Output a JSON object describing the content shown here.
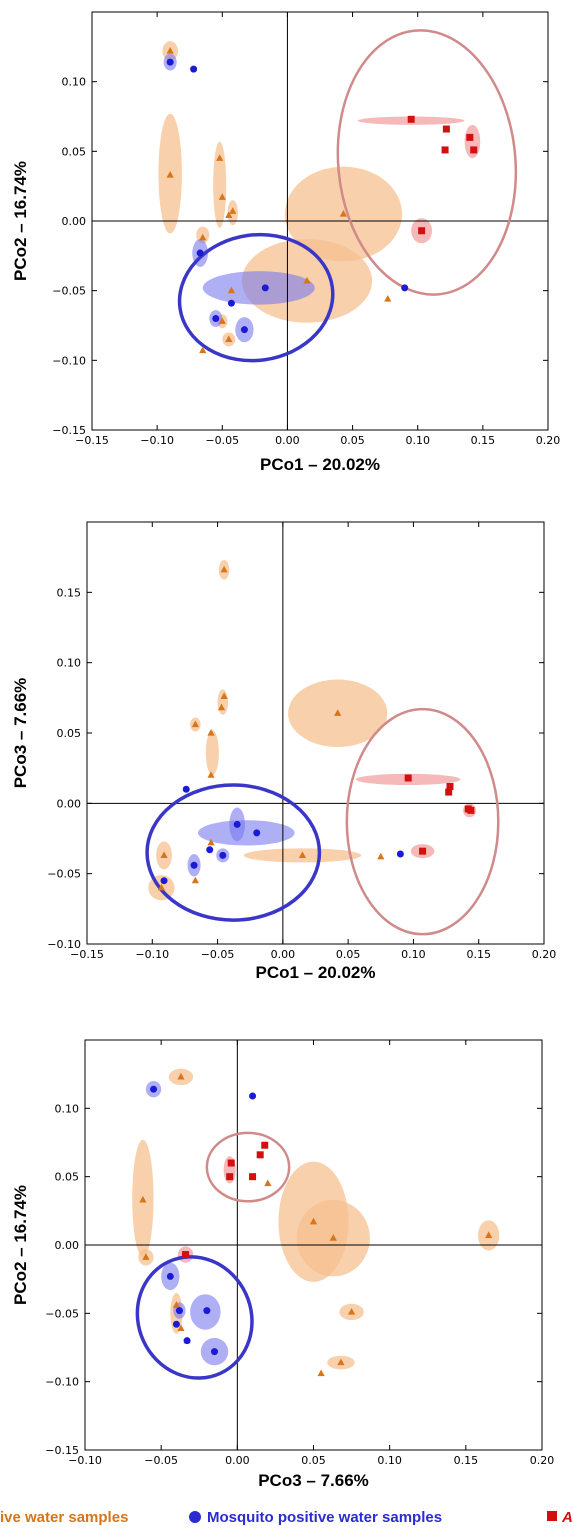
{
  "colors": {
    "orange": "#d7751a",
    "orange_fill": "#f6c08f",
    "blue": "#1b1bd6",
    "blue_fill": "#7a7af0",
    "red": "#d40f0f",
    "red_fill": "#f08a8a",
    "pink_ring": "#d08a8a",
    "blue_ring": "#3a36c8"
  },
  "legend": [
    {
      "text": "ive water samples",
      "color": "#d7751a",
      "marker": "none"
    },
    {
      "text": "Mosquito positive water samples",
      "color": "#2b2bd2",
      "marker": "circle"
    },
    {
      "text": "A",
      "color": "#d40f0f",
      "marker": "square"
    }
  ],
  "chart_data": [
    {
      "type": "scatter",
      "xlabel": "PCo1 – 20.02%",
      "ylabel": "PCo2 – 16.74%",
      "xlim": [
        -0.15,
        0.2
      ],
      "ylim": [
        -0.15,
        0.15
      ],
      "xticks": [
        "−0.15",
        "−0.10",
        "−0.05",
        "0.00",
        "0.05",
        "0.10",
        "0.15",
        "0.20"
      ],
      "yticks": [
        "−0.15",
        "−0.10",
        "−0.05",
        "0.00",
        "0.05",
        "0.10"
      ],
      "xtick_values": [
        -0.15,
        -0.1,
        -0.05,
        0.0,
        0.05,
        0.1,
        0.15,
        0.2
      ],
      "ytick_values": [
        -0.15,
        -0.1,
        -0.05,
        0.0,
        0.05,
        0.1
      ],
      "reference_lines": {
        "x": 0,
        "y": 0
      },
      "series": [
        {
          "marker": "triangle",
          "color": "orange",
          "points": [
            [
              -0.09,
              0.122
            ],
            [
              -0.09,
              0.033
            ],
            [
              -0.052,
              0.045
            ],
            [
              -0.05,
              0.017
            ],
            [
              -0.045,
              0.004
            ],
            [
              -0.042,
              0.007
            ],
            [
              -0.065,
              -0.012
            ],
            [
              -0.065,
              -0.093
            ],
            [
              -0.045,
              -0.085
            ],
            [
              -0.05,
              -0.072
            ],
            [
              -0.043,
              -0.05
            ],
            [
              0.043,
              0.005
            ],
            [
              0.015,
              -0.043
            ],
            [
              0.077,
              -0.056
            ]
          ]
        },
        {
          "marker": "circle",
          "color": "blue",
          "points": [
            [
              -0.09,
              0.114
            ],
            [
              -0.072,
              0.109
            ],
            [
              -0.067,
              -0.023
            ],
            [
              -0.017,
              -0.048
            ],
            [
              -0.043,
              -0.059
            ],
            [
              -0.055,
              -0.07
            ],
            [
              -0.033,
              -0.078
            ],
            [
              0.09,
              -0.048
            ]
          ]
        },
        {
          "marker": "square",
          "color": "red",
          "points": [
            [
              0.095,
              0.073
            ],
            [
              0.122,
              0.066
            ],
            [
              0.14,
              0.06
            ],
            [
              0.143,
              0.051
            ],
            [
              0.121,
              0.051
            ],
            [
              0.103,
              -0.007
            ]
          ]
        }
      ],
      "ellipses": [
        {
          "color": "orange",
          "cx": -0.09,
          "cy": 0.034,
          "rx": 0.009,
          "ry": 0.043
        },
        {
          "color": "orange",
          "cx": -0.09,
          "cy": 0.122,
          "rx": 0.006,
          "ry": 0.007
        },
        {
          "color": "orange",
          "cx": -0.052,
          "cy": 0.026,
          "rx": 0.005,
          "ry": 0.031
        },
        {
          "color": "orange",
          "cx": -0.042,
          "cy": 0.006,
          "rx": 0.004,
          "ry": 0.009
        },
        {
          "color": "orange",
          "cx": -0.065,
          "cy": -0.01,
          "rx": 0.005,
          "ry": 0.006
        },
        {
          "color": "orange",
          "cx": 0.043,
          "cy": 0.005,
          "rx": 0.045,
          "ry": 0.034
        },
        {
          "color": "orange",
          "cx": 0.015,
          "cy": -0.043,
          "rx": 0.05,
          "ry": 0.03
        },
        {
          "color": "orange",
          "cx": -0.045,
          "cy": -0.085,
          "rx": 0.005,
          "ry": 0.005
        },
        {
          "color": "orange",
          "cx": -0.05,
          "cy": -0.072,
          "rx": 0.004,
          "ry": 0.005
        },
        {
          "color": "blue",
          "cx": -0.09,
          "cy": 0.114,
          "rx": 0.005,
          "ry": 0.006
        },
        {
          "color": "blue",
          "cx": -0.067,
          "cy": -0.023,
          "rx": 0.006,
          "ry": 0.01
        },
        {
          "color": "blue",
          "cx": -0.022,
          "cy": -0.048,
          "rx": 0.043,
          "ry": 0.012
        },
        {
          "color": "blue",
          "cx": -0.055,
          "cy": -0.07,
          "rx": 0.005,
          "ry": 0.006
        },
        {
          "color": "blue",
          "cx": -0.033,
          "cy": -0.078,
          "rx": 0.007,
          "ry": 0.009
        },
        {
          "color": "red",
          "cx": 0.095,
          "cy": 0.072,
          "rx": 0.041,
          "ry": 0.003
        },
        {
          "color": "red",
          "cx": 0.142,
          "cy": 0.057,
          "rx": 0.006,
          "ry": 0.012
        },
        {
          "color": "red",
          "cx": 0.103,
          "cy": -0.007,
          "rx": 0.008,
          "ry": 0.009
        }
      ],
      "group_rings": [
        {
          "color": "pink_ring",
          "cx": 0.107,
          "cy": 0.042,
          "rx": 0.068,
          "ry": 0.095,
          "angle": -5
        },
        {
          "color": "blue_ring",
          "cx": -0.024,
          "cy": -0.055,
          "rx": 0.059,
          "ry": 0.045,
          "angle": -8
        }
      ]
    },
    {
      "type": "scatter",
      "xlabel": "PCo1 – 20.02%",
      "ylabel": "PCo3 – 7.66%",
      "xlim": [
        -0.15,
        0.2
      ],
      "ylim": [
        -0.1,
        0.2
      ],
      "xticks": [
        "−0.15",
        "−0.10",
        "−0.05",
        "0.00",
        "0.05",
        "0.10",
        "0.15",
        "0.20"
      ],
      "yticks": [
        "−0.10",
        "−0.05",
        "0.00",
        "0.05",
        "0.10",
        "0.15"
      ],
      "xtick_values": [
        -0.15,
        -0.1,
        -0.05,
        0.0,
        0.05,
        0.1,
        0.15,
        0.2
      ],
      "ytick_values": [
        -0.1,
        -0.05,
        0.0,
        0.05,
        0.1,
        0.15
      ],
      "reference_lines": {
        "x": 0,
        "y": 0
      },
      "series": [
        {
          "marker": "triangle",
          "color": "orange",
          "points": [
            [
              -0.045,
              0.166
            ],
            [
              -0.045,
              0.076
            ],
            [
              -0.047,
              0.068
            ],
            [
              -0.067,
              0.056
            ],
            [
              -0.055,
              0.05
            ],
            [
              -0.055,
              0.02
            ],
            [
              -0.055,
              -0.028
            ],
            [
              -0.091,
              -0.037
            ],
            [
              -0.067,
              -0.055
            ],
            [
              -0.093,
              -0.06
            ],
            [
              0.042,
              0.064
            ],
            [
              0.015,
              -0.037
            ],
            [
              0.075,
              -0.038
            ]
          ]
        },
        {
          "marker": "circle",
          "color": "blue",
          "points": [
            [
              -0.074,
              0.01
            ],
            [
              -0.035,
              -0.015
            ],
            [
              -0.02,
              -0.021
            ],
            [
              -0.056,
              -0.033
            ],
            [
              -0.046,
              -0.037
            ],
            [
              -0.068,
              -0.044
            ],
            [
              -0.091,
              -0.055
            ],
            [
              0.09,
              -0.036
            ]
          ]
        },
        {
          "marker": "square",
          "color": "red",
          "points": [
            [
              0.096,
              0.018
            ],
            [
              0.128,
              0.012
            ],
            [
              0.127,
              0.008
            ],
            [
              0.142,
              -0.004
            ],
            [
              0.144,
              -0.005
            ],
            [
              0.107,
              -0.034
            ]
          ]
        }
      ],
      "ellipses": [
        {
          "color": "orange",
          "cx": -0.045,
          "cy": 0.166,
          "rx": 0.004,
          "ry": 0.007
        },
        {
          "color": "orange",
          "cx": -0.046,
          "cy": 0.072,
          "rx": 0.004,
          "ry": 0.009
        },
        {
          "color": "orange",
          "cx": -0.067,
          "cy": 0.056,
          "rx": 0.004,
          "ry": 0.005
        },
        {
          "color": "orange",
          "cx": -0.054,
          "cy": 0.036,
          "rx": 0.005,
          "ry": 0.016
        },
        {
          "color": "orange",
          "cx": 0.042,
          "cy": 0.064,
          "rx": 0.038,
          "ry": 0.024
        },
        {
          "color": "orange",
          "cx": 0.015,
          "cy": -0.037,
          "rx": 0.045,
          "ry": 0.005
        },
        {
          "color": "orange",
          "cx": -0.091,
          "cy": -0.037,
          "rx": 0.006,
          "ry": 0.01
        },
        {
          "color": "orange",
          "cx": -0.093,
          "cy": -0.06,
          "rx": 0.01,
          "ry": 0.009
        },
        {
          "color": "blue",
          "cx": -0.035,
          "cy": -0.015,
          "rx": 0.006,
          "ry": 0.012
        },
        {
          "color": "blue",
          "cx": -0.028,
          "cy": -0.021,
          "rx": 0.037,
          "ry": 0.009
        },
        {
          "color": "blue",
          "cx": -0.068,
          "cy": -0.044,
          "rx": 0.005,
          "ry": 0.008
        },
        {
          "color": "blue",
          "cx": -0.046,
          "cy": -0.037,
          "rx": 0.005,
          "ry": 0.005
        },
        {
          "color": "red",
          "cx": 0.096,
          "cy": 0.017,
          "rx": 0.04,
          "ry": 0.004
        },
        {
          "color": "red",
          "cx": 0.143,
          "cy": -0.005,
          "rx": 0.005,
          "ry": 0.005
        },
        {
          "color": "red",
          "cx": 0.107,
          "cy": -0.034,
          "rx": 0.009,
          "ry": 0.005
        }
      ],
      "group_rings": [
        {
          "color": "pink_ring",
          "cx": 0.107,
          "cy": -0.013,
          "rx": 0.058,
          "ry": 0.08,
          "angle": 0
        },
        {
          "color": "blue_ring",
          "cx": -0.038,
          "cy": -0.035,
          "rx": 0.066,
          "ry": 0.048,
          "angle": 0
        }
      ]
    },
    {
      "type": "scatter",
      "xlabel": "PCo3 – 7.66%",
      "ylabel": "PCo2 – 16.74%",
      "xlim": [
        -0.1,
        0.2
      ],
      "ylim": [
        -0.15,
        0.15
      ],
      "xticks": [
        "−0.10",
        "−0.05",
        "0.00",
        "0.05",
        "0.10",
        "0.15",
        "0.20"
      ],
      "yticks": [
        "−0.15",
        "−0.10",
        "−0.05",
        "0.00",
        "0.05",
        "0.10"
      ],
      "xtick_values": [
        -0.1,
        -0.05,
        0.0,
        0.05,
        0.1,
        0.15,
        0.2
      ],
      "ytick_values": [
        -0.15,
        -0.1,
        -0.05,
        0.0,
        0.05,
        0.1
      ],
      "reference_lines": {
        "x": 0,
        "y": 0
      },
      "series": [
        {
          "marker": "triangle",
          "color": "orange",
          "points": [
            [
              -0.037,
              0.123
            ],
            [
              -0.062,
              0.033
            ],
            [
              -0.06,
              -0.009
            ],
            [
              -0.04,
              -0.044
            ],
            [
              -0.037,
              -0.061
            ],
            [
              -0.033,
              -0.07
            ],
            [
              0.02,
              0.045
            ],
            [
              0.05,
              0.017
            ],
            [
              0.063,
              0.005
            ],
            [
              0.165,
              0.007
            ],
            [
              0.075,
              -0.049
            ],
            [
              0.068,
              -0.086
            ],
            [
              0.055,
              -0.094
            ]
          ]
        },
        {
          "marker": "circle",
          "color": "blue",
          "points": [
            [
              -0.055,
              0.114
            ],
            [
              0.01,
              0.109
            ],
            [
              -0.044,
              -0.023
            ],
            [
              -0.038,
              -0.048
            ],
            [
              -0.02,
              -0.048
            ],
            [
              -0.04,
              -0.058
            ],
            [
              -0.033,
              -0.07
            ],
            [
              -0.015,
              -0.078
            ]
          ]
        },
        {
          "marker": "square",
          "color": "red",
          "points": [
            [
              0.018,
              0.073
            ],
            [
              0.015,
              0.066
            ],
            [
              -0.004,
              0.06
            ],
            [
              -0.005,
              0.05
            ],
            [
              0.01,
              0.05
            ],
            [
              -0.034,
              -0.007
            ]
          ]
        }
      ],
      "ellipses": [
        {
          "color": "orange",
          "cx": -0.037,
          "cy": 0.123,
          "rx": 0.008,
          "ry": 0.006
        },
        {
          "color": "orange",
          "cx": -0.062,
          "cy": 0.034,
          "rx": 0.007,
          "ry": 0.043
        },
        {
          "color": "orange",
          "cx": -0.06,
          "cy": -0.009,
          "rx": 0.005,
          "ry": 0.006
        },
        {
          "color": "orange",
          "cx": 0.05,
          "cy": 0.017,
          "rx": 0.023,
          "ry": 0.044
        },
        {
          "color": "orange",
          "cx": 0.063,
          "cy": 0.005,
          "rx": 0.024,
          "ry": 0.028
        },
        {
          "color": "orange",
          "cx": 0.165,
          "cy": 0.007,
          "rx": 0.007,
          "ry": 0.011
        },
        {
          "color": "orange",
          "cx": 0.075,
          "cy": -0.049,
          "rx": 0.008,
          "ry": 0.006
        },
        {
          "color": "orange",
          "cx": 0.068,
          "cy": -0.086,
          "rx": 0.009,
          "ry": 0.005
        },
        {
          "color": "orange",
          "cx": -0.04,
          "cy": -0.05,
          "rx": 0.004,
          "ry": 0.015
        },
        {
          "color": "blue",
          "cx": -0.055,
          "cy": 0.114,
          "rx": 0.005,
          "ry": 0.006
        },
        {
          "color": "blue",
          "cx": -0.044,
          "cy": -0.023,
          "rx": 0.006,
          "ry": 0.01
        },
        {
          "color": "blue",
          "cx": -0.021,
          "cy": -0.049,
          "rx": 0.01,
          "ry": 0.013
        },
        {
          "color": "blue",
          "cx": -0.015,
          "cy": -0.078,
          "rx": 0.009,
          "ry": 0.01
        },
        {
          "color": "blue",
          "cx": -0.038,
          "cy": -0.048,
          "rx": 0.004,
          "ry": 0.006
        },
        {
          "color": "red",
          "cx": -0.034,
          "cy": -0.007,
          "rx": 0.005,
          "ry": 0.006
        },
        {
          "color": "red",
          "cx": -0.005,
          "cy": 0.055,
          "rx": 0.004,
          "ry": 0.01
        }
      ],
      "group_rings": [
        {
          "color": "pink_ring",
          "cx": 0.007,
          "cy": 0.057,
          "rx": 0.027,
          "ry": 0.025,
          "angle": 0
        },
        {
          "color": "blue_ring",
          "cx": -0.028,
          "cy": -0.053,
          "rx": 0.037,
          "ry": 0.045,
          "angle": -25
        }
      ]
    }
  ]
}
